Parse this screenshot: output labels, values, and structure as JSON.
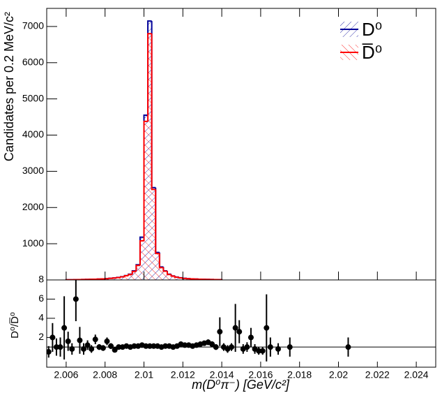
{
  "chart_data": [
    {
      "type": "histogram",
      "ylabel": "Candidates per 0.2 MeV/c²",
      "xlim": [
        2.005,
        2.025
      ],
      "ylim": [
        0,
        7500
      ],
      "yticks": [
        1000,
        2000,
        3000,
        4000,
        5000,
        6000,
        7000
      ],
      "legend": "top-right",
      "bins": [
        2.006,
        2.0062,
        2.0064,
        2.0066,
        2.0068,
        2.007,
        2.0072,
        2.0074,
        2.0076,
        2.0078,
        2.008,
        2.0082,
        2.0084,
        2.0086,
        2.0088,
        2.009,
        2.0092,
        2.0094,
        2.0096,
        2.0098,
        2.01,
        2.0102,
        2.0104,
        2.0106,
        2.0108,
        2.011,
        2.0112,
        2.0114,
        2.0116,
        2.0118,
        2.012,
        2.0122,
        2.0124,
        2.0126,
        2.0128,
        2.013,
        2.0132,
        2.0134,
        2.0136,
        2.0138,
        2.014
      ],
      "series": [
        {
          "name": "D⁰",
          "color": "#000099",
          "values": [
            5,
            5,
            8,
            10,
            12,
            15,
            18,
            20,
            25,
            30,
            35,
            45,
            55,
            70,
            90,
            120,
            160,
            250,
            420,
            1180,
            4550,
            7150,
            2550,
            760,
            360,
            250,
            160,
            110,
            80,
            60,
            45,
            35,
            30,
            25,
            20,
            18,
            15,
            12,
            10,
            8
          ]
        },
        {
          "name": "D̅⁰",
          "color": "#ff0000",
          "values": [
            5,
            5,
            8,
            10,
            12,
            14,
            17,
            20,
            24,
            28,
            34,
            43,
            52,
            66,
            85,
            115,
            150,
            235,
            400,
            1080,
            4380,
            6800,
            2500,
            730,
            340,
            240,
            150,
            105,
            75,
            55,
            42,
            33,
            28,
            23,
            19,
            17,
            14,
            11,
            9,
            7
          ]
        }
      ]
    },
    {
      "type": "scatter",
      "ylabel": "D⁰/D̅⁰",
      "xlabel": "m(D⁰π⁻) [GeV/c²]",
      "xlim": [
        2.005,
        2.025
      ],
      "ylim": [
        -1.1,
        8
      ],
      "xticks": [
        2.006,
        2.008,
        2.01,
        2.012,
        2.014,
        2.016,
        2.018,
        2.02,
        2.022,
        2.024
      ],
      "yticks": [
        2,
        4,
        6,
        8
      ],
      "ref_line": 1,
      "color": "#000000",
      "x": [
        2.0051,
        2.0053,
        2.0055,
        2.0057,
        2.0059,
        2.0061,
        2.0063,
        2.0065,
        2.0067,
        2.0069,
        2.0071,
        2.0073,
        2.0075,
        2.0077,
        2.0079,
        2.0081,
        2.0083,
        2.0085,
        2.0087,
        2.0089,
        2.0091,
        2.0093,
        2.0095,
        2.0097,
        2.0099,
        2.0101,
        2.0103,
        2.0105,
        2.0107,
        2.0109,
        2.0111,
        2.0113,
        2.0115,
        2.0117,
        2.0119,
        2.0121,
        2.0123,
        2.0125,
        2.0127,
        2.0129,
        2.0131,
        2.0133,
        2.0135,
        2.0137,
        2.0139,
        2.0141,
        2.0143,
        2.0145,
        2.0147,
        2.0149,
        2.0151,
        2.0153,
        2.0155,
        2.0157,
        2.0159,
        2.0161,
        2.0163,
        2.0165,
        2.0169,
        2.0175,
        2.0205
      ],
      "values": [
        0.5,
        2.0,
        1.0,
        1.0,
        3.0,
        1.6,
        0.8,
        6.0,
        1.7,
        0.8,
        1.2,
        0.8,
        1.8,
        1.0,
        0.9,
        1.6,
        1.1,
        0.7,
        1.0,
        1.0,
        1.1,
        1.0,
        1.1,
        1.1,
        1.2,
        1.1,
        1.1,
        1.1,
        1.1,
        1.0,
        1.1,
        1.1,
        1.0,
        1.1,
        1.3,
        1.2,
        1.2,
        1.1,
        1.2,
        1.3,
        1.4,
        1.5,
        1.3,
        1.0,
        2.6,
        1.0,
        0.8,
        1.0,
        3.0,
        2.6,
        0.8,
        1.0,
        2.0,
        0.8,
        0.6,
        0.6,
        3.0,
        1.0,
        0.8,
        1.0,
        1.0
      ],
      "errors": [
        0.6,
        1.5,
        0.9,
        1.0,
        3.3,
        1.0,
        0.6,
        2.3,
        1.4,
        0.6,
        0.5,
        0.4,
        0.5,
        0.3,
        0.3,
        0.4,
        0.3,
        0.2,
        0.2,
        0.2,
        0.1,
        0.1,
        0.1,
        0.1,
        0.1,
        0.1,
        0.1,
        0.1,
        0.1,
        0.1,
        0.1,
        0.1,
        0.1,
        0.1,
        0.1,
        0.1,
        0.1,
        0.1,
        0.1,
        0.1,
        0.1,
        0.3,
        0.3,
        0.3,
        1.5,
        0.4,
        0.4,
        0.4,
        2.5,
        1.2,
        0.5,
        0.5,
        1.0,
        0.5,
        0.4,
        0.4,
        3.5,
        1.0,
        0.6,
        1.0,
        1.0
      ]
    }
  ]
}
